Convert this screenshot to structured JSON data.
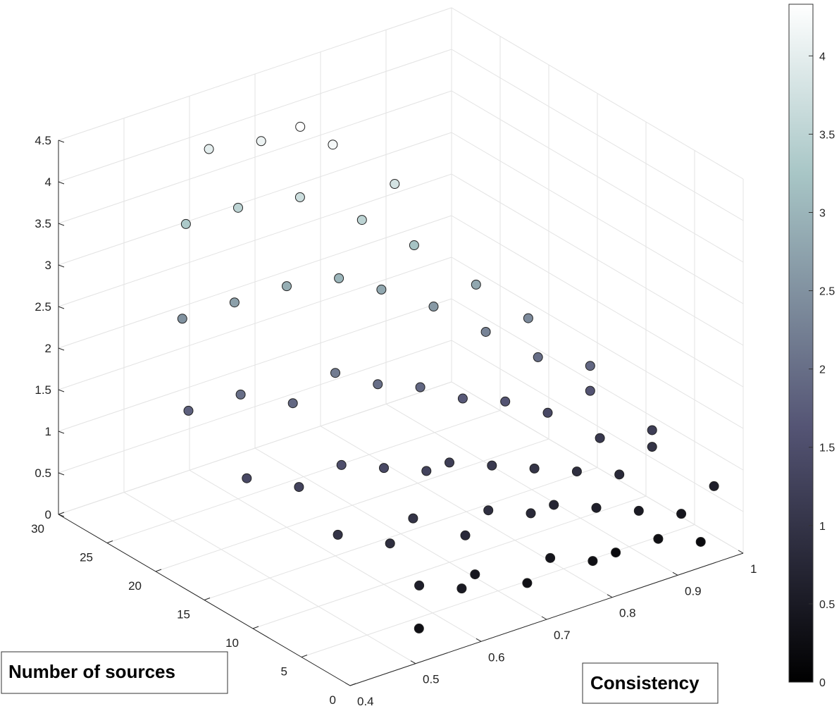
{
  "chart_data": {
    "type": "scatter",
    "dimensions": "3d",
    "xlabel": "Consistency",
    "ylabel": "Number of sources",
    "zlabel": "",
    "xlim": [
      0.4,
      1
    ],
    "ylim": [
      0,
      30
    ],
    "zlim": [
      0,
      4.5
    ],
    "x_ticks": [
      "0.4",
      "0.5",
      "0.6",
      "0.7",
      "0.8",
      "0.9",
      "1"
    ],
    "y_ticks": [
      "0",
      "5",
      "10",
      "15",
      "20",
      "25",
      "30"
    ],
    "z_ticks": [
      "0",
      "0.5",
      "1",
      "1.5",
      "2",
      "2.5",
      "3",
      "3.5",
      "4",
      "4.5"
    ],
    "grid": true,
    "color_by": "z",
    "colormap": "bone",
    "colorbar": {
      "range": [
        0,
        4.33
      ],
      "ticks": [
        "0",
        "0.5",
        "1",
        "1.5",
        "2",
        "2.5",
        "3",
        "3.5",
        "4"
      ]
    },
    "series": [
      {
        "points": [
          [
            0.52,
            1,
            0.3
          ],
          [
            0.55,
            3,
            0.6
          ],
          [
            0.6,
            2,
            0.5
          ],
          [
            0.65,
            4,
            0.4
          ],
          [
            0.7,
            2,
            0.3
          ],
          [
            0.75,
            3,
            0.4
          ],
          [
            0.8,
            2,
            0.3
          ],
          [
            0.85,
            3,
            0.2
          ],
          [
            0.9,
            2,
            0.3
          ],
          [
            0.95,
            1,
            0.2
          ],
          [
            0.5,
            8,
            1.0
          ],
          [
            0.55,
            6,
            0.9
          ],
          [
            0.6,
            7,
            1.0
          ],
          [
            0.65,
            5,
            0.8
          ],
          [
            0.7,
            6,
            0.9
          ],
          [
            0.75,
            5,
            0.8
          ],
          [
            0.8,
            6,
            0.7
          ],
          [
            0.85,
            5,
            0.6
          ],
          [
            0.9,
            4,
            0.5
          ],
          [
            0.95,
            3,
            0.4
          ],
          [
            0.45,
            14,
            1.4
          ],
          [
            0.5,
            12,
            1.3
          ],
          [
            0.55,
            11,
            1.5
          ],
          [
            0.6,
            10,
            1.4
          ],
          [
            0.65,
            9,
            1.3
          ],
          [
            0.7,
            10,
            1.2
          ],
          [
            0.75,
            9,
            1.1
          ],
          [
            0.8,
            8,
            1.0
          ],
          [
            0.85,
            7,
            0.9
          ],
          [
            0.9,
            6,
            0.8
          ],
          [
            0.45,
            20,
            1.8
          ],
          [
            0.5,
            18,
            2.0
          ],
          [
            0.55,
            16,
            1.9
          ],
          [
            0.6,
            15,
            2.2
          ],
          [
            0.65,
            14,
            2.0
          ],
          [
            0.7,
            13,
            1.9
          ],
          [
            0.75,
            12,
            1.7
          ],
          [
            0.8,
            11,
            1.6
          ],
          [
            0.85,
            10,
            1.4
          ],
          [
            0.9,
            8,
            1.1
          ],
          [
            0.5,
            24,
            2.5
          ],
          [
            0.55,
            22,
            2.7
          ],
          [
            0.6,
            20,
            2.9
          ],
          [
            0.65,
            18,
            3.0
          ],
          [
            0.7,
            17,
            2.8
          ],
          [
            0.75,
            15,
            2.6
          ],
          [
            0.8,
            13,
            2.3
          ],
          [
            0.85,
            11,
            2.0
          ],
          [
            0.9,
            9,
            1.6
          ],
          [
            0.95,
            6,
            1.0
          ],
          [
            0.55,
            27,
            3.3
          ],
          [
            0.6,
            25,
            3.5
          ],
          [
            0.65,
            22,
            3.7
          ],
          [
            0.7,
            19,
            3.5
          ],
          [
            0.75,
            17,
            3.2
          ],
          [
            0.8,
            14,
            2.8
          ],
          [
            0.85,
            12,
            2.4
          ],
          [
            0.9,
            9,
            1.9
          ],
          [
            0.95,
            6,
            1.2
          ],
          [
            1.0,
            3,
            0.6
          ],
          [
            0.6,
            28,
            4.0
          ],
          [
            0.65,
            26,
            4.1
          ],
          [
            0.68,
            24,
            4.33
          ],
          [
            0.7,
            22,
            4.2
          ],
          [
            0.75,
            19,
            3.8
          ]
        ]
      }
    ]
  }
}
